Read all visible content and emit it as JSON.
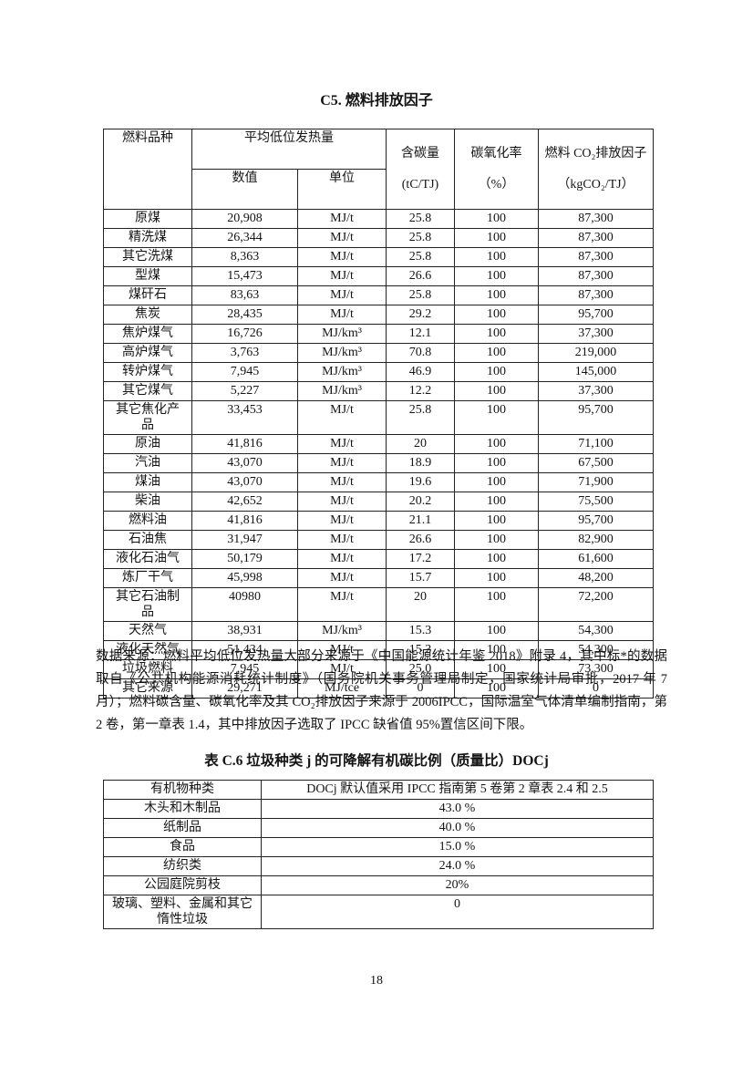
{
  "table1": {
    "title": "C5. 燃料排放因子",
    "header": {
      "col_fuel": "燃料品种",
      "col_heat": "平均低位发热量",
      "col_heat_value": "数值",
      "col_heat_unit": "单位",
      "col_carbon_line1": "含碳量",
      "col_carbon_line2": "(tC/TJ)",
      "col_oxid_line1": "碳氧化率",
      "col_oxid_line2": "（%）",
      "col_factor_line1": "燃料 CO₂排放因子",
      "col_factor_line2": "（kgCO₂/TJ）"
    },
    "rows": [
      [
        "原煤",
        "20,908",
        "MJ/t",
        "25.8",
        "100",
        "87,300"
      ],
      [
        "精洗煤",
        "26,344",
        "MJ/t",
        "25.8",
        "100",
        "87,300"
      ],
      [
        "其它洗煤",
        "8,363",
        "MJ/t",
        "25.8",
        "100",
        "87,300"
      ],
      [
        "型煤",
        "15,473",
        "MJ/t",
        "26.6",
        "100",
        "87,300"
      ],
      [
        "煤矸石",
        "83,63",
        "MJ/t",
        "25.8",
        "100",
        "87,300"
      ],
      [
        "焦炭",
        "28,435",
        "MJ/t",
        "29.2",
        "100",
        "95,700"
      ],
      [
        "焦炉煤气",
        "16,726",
        "MJ/km³",
        "12.1",
        "100",
        "37,300"
      ],
      [
        "高炉煤气",
        "3,763",
        "MJ/km³",
        "70.8",
        "100",
        "219,000"
      ],
      [
        "转炉煤气",
        "7,945",
        "MJ/km³",
        "46.9",
        "100",
        "145,000"
      ],
      [
        "其它煤气",
        "5,227",
        "MJ/km³",
        "12.2",
        "100",
        "37,300"
      ],
      [
        "其它焦化产\n品",
        "33,453",
        "MJ/t",
        "25.8",
        "100",
        "95,700"
      ],
      [
        "原油",
        "41,816",
        "MJ/t",
        "20",
        "100",
        "71,100"
      ],
      [
        "汽油",
        "43,070",
        "MJ/t",
        "18.9",
        "100",
        "67,500"
      ],
      [
        "煤油",
        "43,070",
        "MJ/t",
        "19.6",
        "100",
        "71,900"
      ],
      [
        "柴油",
        "42,652",
        "MJ/t",
        "20.2",
        "100",
        "75,500"
      ],
      [
        "燃料油",
        "41,816",
        "MJ/t",
        "21.1",
        "100",
        "95,700"
      ],
      [
        "石油焦",
        "31,947",
        "MJ/t",
        "26.6",
        "100",
        "82,900"
      ],
      [
        "液化石油气",
        "50,179",
        "MJ/t",
        "17.2",
        "100",
        "61,600"
      ],
      [
        "炼厂干气",
        "45,998",
        "MJ/t",
        "15.7",
        "100",
        "48,200"
      ],
      [
        "其它石油制\n品",
        "40980",
        "MJ/t",
        "20",
        "100",
        "72,200"
      ],
      [
        "天然气",
        "38,931",
        "MJ/km³",
        "15.3",
        "100",
        "54,300"
      ],
      [
        "液化天然气",
        "51,434",
        "MJ/t",
        "15.3",
        "100",
        "54,300"
      ],
      [
        "垃圾燃料",
        "7,945",
        "MJ/t",
        "25.0",
        "100",
        "73,300"
      ],
      [
        "其它来源",
        "29,271",
        "MJ/tce",
        "0",
        "100",
        "0"
      ]
    ]
  },
  "source_note": "数据来源：燃料平均低位发热量大部分来源于《中国能源统计年鉴 2018》附录 4，其中标*的数据取自《公共机构能源消耗统计制度》（国务院机关事务管理局制定，国家统计局审批，2017 年 7 月）；燃料碳含量、碳氧化率及其 CO₂排放因子来源于 2006IPCC，国际温室气体清单编制指南，第 2 卷，第一章表 1.4，其中排放因子选取了 IPCC 缺省值 95%置信区间下限。",
  "table2": {
    "title": "表 C.6 垃圾种类 j 的可降解有机碳比例（质量比）DOCj",
    "header": [
      "有机物种类",
      "DOCj 默认值采用 IPCC 指南第 5 卷第 2 章表 2.4 和 2.5"
    ],
    "rows": [
      [
        "木头和木制品",
        "43.0 %"
      ],
      [
        "纸制品",
        "40.0 %"
      ],
      [
        "食品",
        "15.0 %"
      ],
      [
        "纺织类",
        "24.0 %"
      ],
      [
        "公园庭院剪枝",
        "20%"
      ],
      [
        "玻璃、塑料、金属和其它\n惰性垃圾",
        "0"
      ]
    ]
  },
  "page": {
    "number": "18"
  }
}
